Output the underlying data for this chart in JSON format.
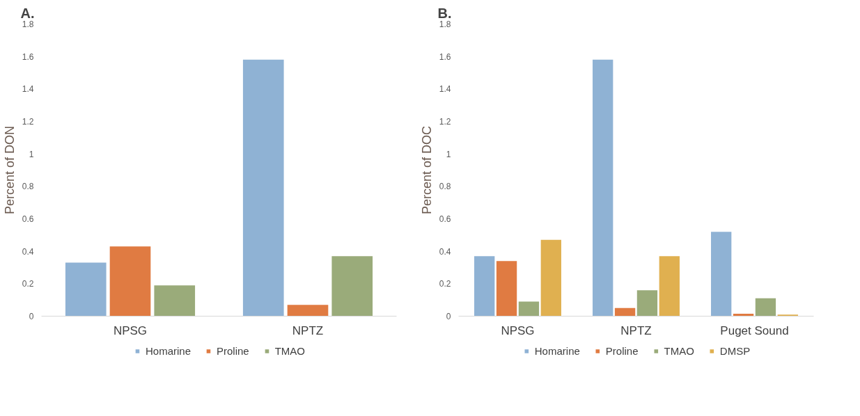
{
  "chart_data": [
    {
      "type": "bar",
      "title": "A.",
      "ylabel": "Percent of DON",
      "categories": [
        "NPSG",
        "NPTZ"
      ],
      "ylim": [
        0,
        1.8
      ],
      "yticks": [
        0,
        0.2,
        0.4,
        0.6,
        0.8,
        1,
        1.2,
        1.4,
        1.6,
        1.8
      ],
      "grid": false,
      "legend": "bottom",
      "series": [
        {
          "name": "Homarine",
          "color": "#8fb2d4",
          "values": [
            0.33,
            1.58
          ]
        },
        {
          "name": "Proline",
          "color": "#e07b42",
          "values": [
            0.43,
            0.07
          ]
        },
        {
          "name": "TMAO",
          "color": "#9aab7a",
          "values": [
            0.19,
            0.37
          ]
        }
      ]
    },
    {
      "type": "bar",
      "title": "B.",
      "ylabel": "Percent of DOC",
      "categories": [
        "NPSG",
        "NPTZ",
        "Puget Sound"
      ],
      "ylim": [
        0,
        1.8
      ],
      "yticks": [
        0,
        0.2,
        0.4,
        0.6,
        0.8,
        1,
        1.2,
        1.4,
        1.6,
        1.8
      ],
      "grid": false,
      "legend": "bottom",
      "series": [
        {
          "name": "Homarine",
          "color": "#8fb2d4",
          "values": [
            0.37,
            1.58,
            0.52
          ]
        },
        {
          "name": "Proline",
          "color": "#e07b42",
          "values": [
            0.34,
            0.05,
            0.015
          ]
        },
        {
          "name": "TMAO",
          "color": "#9aab7a",
          "values": [
            0.09,
            0.16,
            0.11
          ]
        },
        {
          "name": "DMSP",
          "color": "#e0b050",
          "values": [
            0.47,
            0.37,
            0.01
          ]
        }
      ]
    }
  ]
}
